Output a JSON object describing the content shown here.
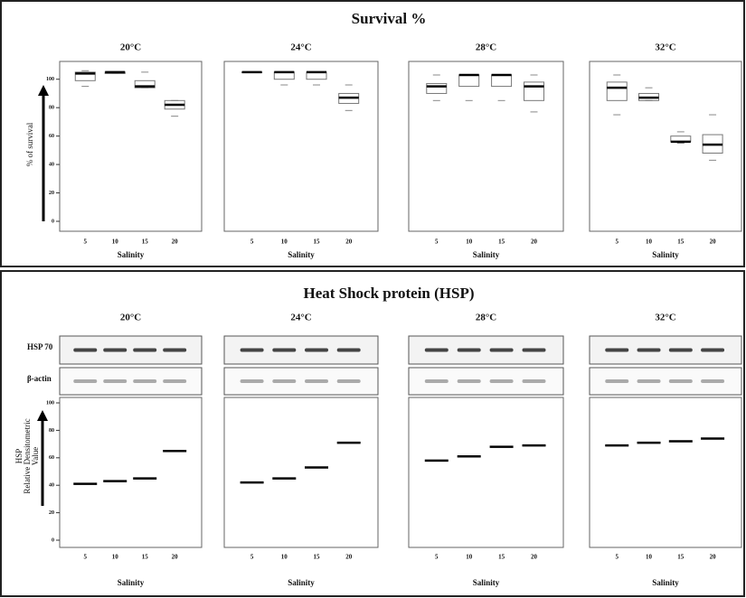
{
  "survival_title": "Survival %",
  "hsp_title": "Heat Shock protein (HSP)",
  "blot_labels": [
    "HSP 70",
    "β-actin"
  ],
  "chart_data": [
    {
      "type": "box",
      "title": "20°C",
      "categories": [
        "5",
        "10",
        "15",
        "20"
      ],
      "x_label": "Salinity",
      "y_label": [
        "% of survival"
      ],
      "ylim": [
        0,
        110
      ],
      "yticks": [
        0,
        20,
        40,
        60,
        80,
        100
      ],
      "stats": [
        {
          "min": 95,
          "q1": 99,
          "median": 104,
          "q3": 105,
          "max": 106
        },
        {
          "min": 104,
          "q1": 104,
          "median": 105,
          "q3": 105,
          "max": 105
        },
        {
          "min": 94,
          "q1": 94,
          "median": 95,
          "q3": 99,
          "max": 105
        },
        {
          "min": 74,
          "q1": 79,
          "median": 82,
          "q3": 85,
          "max": 85
        }
      ]
    },
    {
      "type": "box",
      "title": "24°C",
      "categories": [
        "5",
        "10",
        "15",
        "20"
      ],
      "x_label": "Salinity",
      "ylim": [
        0,
        110
      ],
      "stats": [
        {
          "min": 105,
          "q1": 105,
          "median": 105,
          "q3": 105,
          "max": 105
        },
        {
          "min": 96,
          "q1": 100,
          "median": 105,
          "q3": 105,
          "max": 105
        },
        {
          "min": 96,
          "q1": 100,
          "median": 105,
          "q3": 105,
          "max": 105
        },
        {
          "min": 78,
          "q1": 83,
          "median": 87,
          "q3": 90,
          "max": 96
        }
      ]
    },
    {
      "type": "box",
      "title": "28°C",
      "categories": [
        "5",
        "10",
        "15",
        "20"
      ],
      "x_label": "Salinity",
      "ylim": [
        0,
        110
      ],
      "stats": [
        {
          "min": 85,
          "q1": 90,
          "median": 95,
          "q3": 97,
          "max": 103
        },
        {
          "min": 85,
          "q1": 95,
          "median": 103,
          "q3": 103,
          "max": 103
        },
        {
          "min": 85,
          "q1": 95,
          "median": 103,
          "q3": 103,
          "max": 103
        },
        {
          "min": 77,
          "q1": 85,
          "median": 95,
          "q3": 98,
          "max": 103
        }
      ]
    },
    {
      "type": "box",
      "title": "32°C",
      "categories": [
        "5",
        "10",
        "15",
        "20"
      ],
      "x_label": "Salinity",
      "ylim": [
        0,
        110
      ],
      "stats": [
        {
          "min": 75,
          "q1": 85,
          "median": 94,
          "q3": 98,
          "max": 103
        },
        {
          "min": 85,
          "q1": 85,
          "median": 87,
          "q3": 90,
          "max": 94
        },
        {
          "min": 55,
          "q1": 56,
          "median": 56,
          "q3": 60,
          "max": 63
        },
        {
          "min": 43,
          "q1": 48,
          "median": 54,
          "q3": 61,
          "max": 75
        }
      ]
    },
    {
      "type": "scatter",
      "title": "20°C",
      "categories": [
        "5",
        "10",
        "15",
        "20"
      ],
      "x_label": "Salinity",
      "y_label": [
        "HSP",
        "Relative Densitometric",
        "Value"
      ],
      "ylim": [
        0,
        100
      ],
      "yticks": [
        0,
        20,
        40,
        60,
        80,
        100
      ],
      "values": [
        41,
        43,
        45,
        65
      ]
    },
    {
      "type": "scatter",
      "title": "24°C",
      "categories": [
        "5",
        "10",
        "15",
        "20"
      ],
      "x_label": "Salinity",
      "ylim": [
        0,
        100
      ],
      "values": [
        42,
        45,
        53,
        71
      ]
    },
    {
      "type": "scatter",
      "title": "28°C",
      "categories": [
        "5",
        "10",
        "15",
        "20"
      ],
      "x_label": "Salinity",
      "ylim": [
        0,
        100
      ],
      "values": [
        58,
        61,
        68,
        69
      ]
    },
    {
      "type": "scatter",
      "title": "32°C",
      "categories": [
        "5",
        "10",
        "15",
        "20"
      ],
      "x_label": "Salinity",
      "ylim": [
        0,
        100
      ],
      "values": [
        69,
        71,
        72,
        74
      ]
    }
  ]
}
